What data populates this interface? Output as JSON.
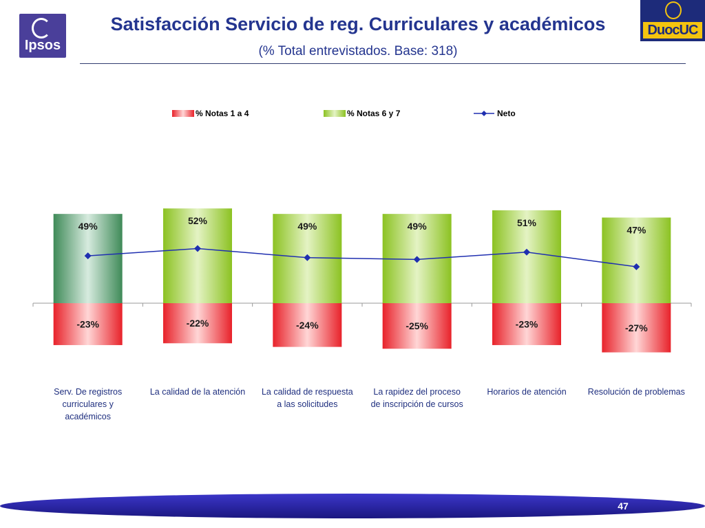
{
  "header": {
    "title": "Satisfacción Servicio de reg. Curriculares y académicos",
    "subtitle": "(% Total entrevistados. Base: 318)",
    "logo_left_text": "Ipsos",
    "logo_right_text": "DuocUC"
  },
  "footer": {
    "page_number": "47"
  },
  "colors": {
    "negative": "#e8222a",
    "positive": "#8cc222",
    "positive_first": "#3f8a58",
    "neto_line": "#1f2fb0",
    "title": "#24358f"
  },
  "chart_data": {
    "type": "bar",
    "legend_position": "top",
    "grid": false,
    "ylim": [
      -35,
      100
    ],
    "categories": [
      "Serv. De registros curriculares y académicos",
      "La calidad de la atención",
      "La calidad de respuesta a las solicitudes",
      "La rapidez del proceso de inscripción de cursos",
      "Horarios de atención",
      "Resolución de problemas"
    ],
    "category_lines": [
      [
        "Serv. De registros",
        "curriculares y",
        "académicos"
      ],
      [
        "La calidad de la atención"
      ],
      [
        "La calidad de respuesta",
        "a las solicitudes"
      ],
      [
        "La rapidez del proceso",
        "de inscripción de cursos"
      ],
      [
        "Horarios de atención"
      ],
      [
        "Resolución de problemas"
      ]
    ],
    "series": [
      {
        "name": "% Notas 1 a 4",
        "values": [
          -23,
          -22,
          -24,
          -25,
          -23,
          -27
        ],
        "labels": [
          "-23%",
          "-22%",
          "-24%",
          "-25%",
          "-23%",
          "-27%"
        ]
      },
      {
        "name": "% Notas 6 y 7",
        "values": [
          49,
          52,
          49,
          49,
          51,
          47
        ],
        "labels": [
          "49%",
          "52%",
          "49%",
          "49%",
          "51%",
          "47%"
        ]
      },
      {
        "name": "Neto",
        "values": [
          26,
          30,
          25,
          24,
          28,
          20
        ]
      }
    ]
  }
}
